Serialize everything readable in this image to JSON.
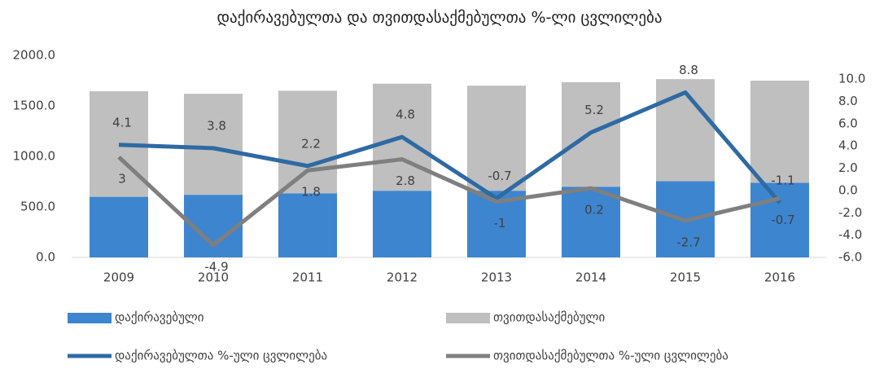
{
  "chart_data": {
    "type": "bar",
    "title": "დაქირავებულთა და თვითდასაქმებულთა %-ლი ცვლილება",
    "categories": [
      "2009",
      "2010",
      "2011",
      "2012",
      "2013",
      "2014",
      "2015",
      "2016"
    ],
    "series": [
      {
        "name": "დაქირავებული",
        "type": "bar",
        "color": "#3d85cf",
        "values": [
          600,
          620,
          635,
          660,
          660,
          700,
          755,
          740
        ]
      },
      {
        "name": "თვითდასაქმებული",
        "type": "bar",
        "color": "#bfbfbf",
        "values": [
          1045,
          1000,
          1015,
          1060,
          1040,
          1035,
          1010,
          1010
        ]
      },
      {
        "name": "დაქირავებულთა %-ული ცვლილება",
        "type": "line",
        "axis": "y2",
        "color": "#2e6aa3",
        "values": [
          4.1,
          3.8,
          2.2,
          4.8,
          -0.7,
          5.2,
          8.8,
          -1.1
        ]
      },
      {
        "name": "თვითდასაქმებულთა %-ული ცვლილება",
        "type": "line",
        "axis": "y2",
        "color": "#7f7f7f",
        "values": [
          3.0,
          -4.9,
          1.8,
          2.8,
          -1.0,
          0.2,
          -2.7,
          -0.7
        ]
      }
    ],
    "ylim": [
      0,
      2000
    ],
    "yticks": [
      {
        "value": 0,
        "label": "0.0"
      },
      {
        "value": 500,
        "label": "500.0"
      },
      {
        "value": 1000,
        "label": "1000.0"
      },
      {
        "value": 1500,
        "label": "1500.0"
      },
      {
        "value": 2000,
        "label": "2000.0"
      }
    ],
    "y2lim": [
      -6,
      10
    ],
    "y2ticks": [
      {
        "value": -6,
        "label": "-6.0"
      },
      {
        "value": -4,
        "label": "-4.0"
      },
      {
        "value": -2,
        "label": "-2.0"
      },
      {
        "value": 0,
        "label": "0.0"
      },
      {
        "value": 2,
        "label": "2.0"
      },
      {
        "value": 4,
        "label": "4.0"
      },
      {
        "value": 6,
        "label": "6.0"
      },
      {
        "value": 8,
        "label": "8.0"
      },
      {
        "value": 10,
        "label": "10.0"
      }
    ],
    "legend": "bottom"
  }
}
